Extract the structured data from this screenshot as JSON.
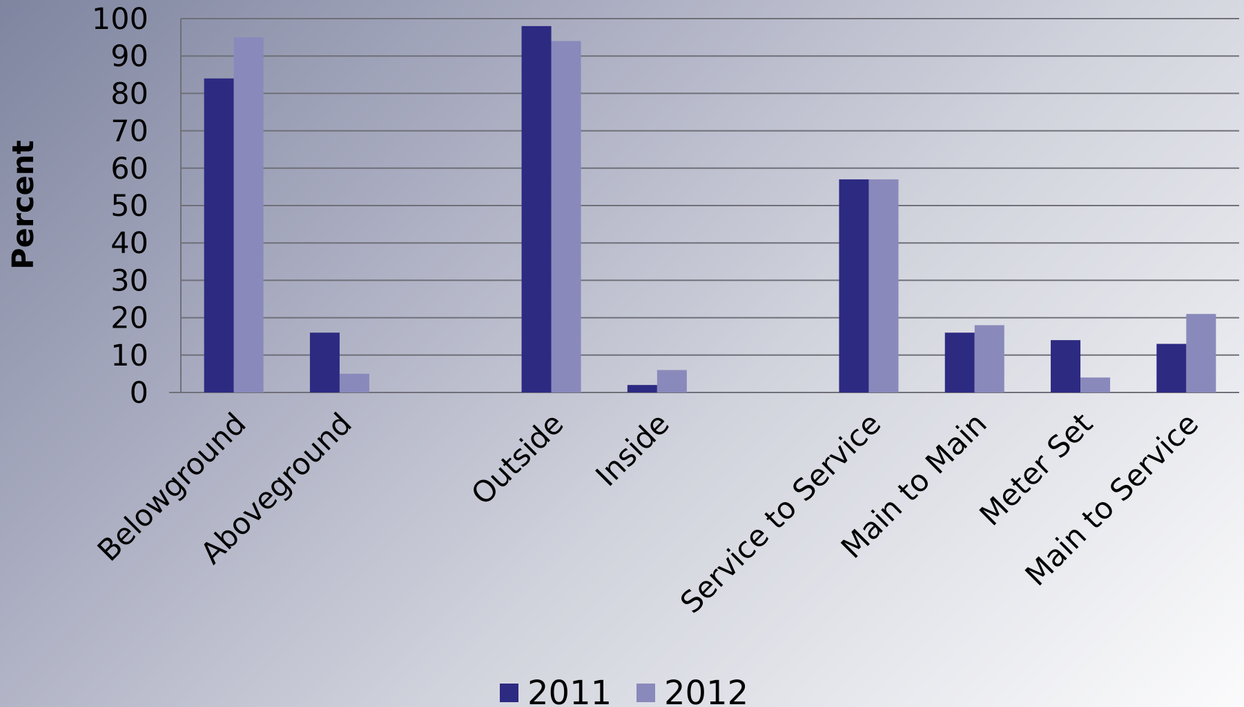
{
  "chart_data": {
    "type": "bar",
    "title": "",
    "xlabel": "",
    "ylabel": "Percent",
    "ylim": [
      0,
      100
    ],
    "yticks": [
      0,
      10,
      20,
      30,
      40,
      50,
      60,
      70,
      80,
      90,
      100
    ],
    "grid": true,
    "legend_position": "bottom",
    "categories": [
      "Belowground",
      "Aboveground",
      "",
      "Outside",
      "Inside",
      "",
      "Service to Service",
      "Main to Main",
      "Meter Set",
      "Main to Service"
    ],
    "series": [
      {
        "name": "2011",
        "color": "#2d2a82",
        "values": [
          84,
          16,
          null,
          98,
          2,
          null,
          57,
          16,
          14,
          13
        ]
      },
      {
        "name": "2012",
        "color": "#8a89bb",
        "values": [
          95,
          5,
          null,
          94,
          6,
          null,
          57,
          18,
          4,
          21
        ]
      }
    ]
  }
}
